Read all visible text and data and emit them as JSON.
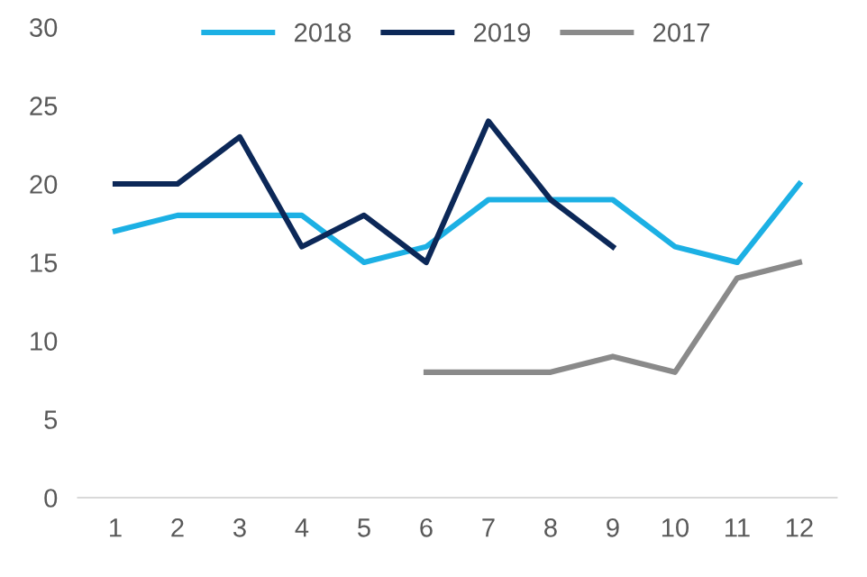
{
  "chart_data": {
    "type": "line",
    "categories": [
      "1",
      "2",
      "3",
      "4",
      "5",
      "6",
      "7",
      "8",
      "9",
      "10",
      "11",
      "12"
    ],
    "series": [
      {
        "name": "2018",
        "color": "#1cb0e4",
        "values": [
          17,
          18,
          18,
          18,
          15,
          16,
          19,
          19,
          19,
          16,
          15,
          20
        ]
      },
      {
        "name": "2019",
        "color": "#0c2858",
        "values": [
          20,
          20,
          23,
          16,
          18,
          15,
          24,
          19,
          16,
          null,
          null,
          null
        ]
      },
      {
        "name": "2017",
        "color": "#8a8a8a",
        "values": [
          null,
          null,
          null,
          null,
          null,
          8,
          8,
          8,
          9,
          8,
          14,
          15
        ]
      }
    ],
    "ylim": [
      0,
      30
    ],
    "yticks": [
      0,
      5,
      10,
      15,
      20,
      25,
      30
    ],
    "grid": false,
    "legend": "top",
    "marker": "none",
    "line_style": "solid"
  }
}
